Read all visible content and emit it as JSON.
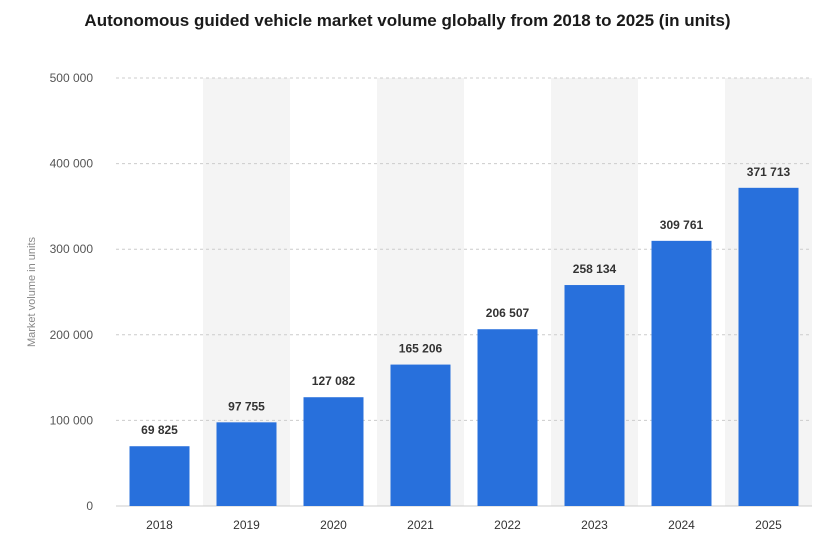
{
  "chart_data": {
    "type": "bar",
    "title": "Autonomous guided vehicle market volume globally from 2018 to 2025 (in units)",
    "xlabel": "",
    "ylabel": "Market volume in units",
    "categories": [
      "2018",
      "2019",
      "2020",
      "2021",
      "2022",
      "2023",
      "2024",
      "2025"
    ],
    "values": [
      69825,
      97755,
      127082,
      165206,
      206507,
      258134,
      309761,
      371713
    ],
    "value_labels": [
      "69 825",
      "97 755",
      "127 082",
      "165 206",
      "206 507",
      "258 134",
      "309 761",
      "371 713"
    ],
    "ylim": [
      0,
      500000
    ],
    "yticks": [
      0,
      100000,
      200000,
      300000,
      400000,
      500000
    ],
    "ytick_labels": [
      "0",
      "100 000",
      "200 000",
      "300 000",
      "400 000",
      "500 000"
    ],
    "grid": true,
    "colors": {
      "bar": "#2870dc",
      "band": "#f4f4f4",
      "grid": "#cccccc"
    }
  }
}
